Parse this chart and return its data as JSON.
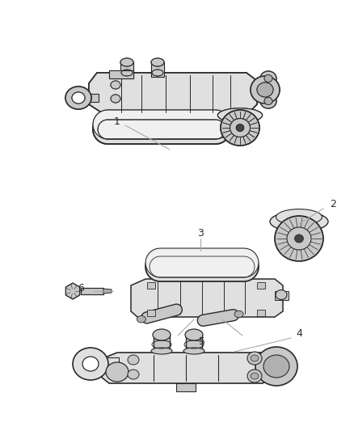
{
  "bg_color": "#ffffff",
  "line_color": "#2a2a2a",
  "label_color": "#2a2a2a",
  "leader_color": "#aaaaaa",
  "figsize": [
    4.38,
    5.33
  ],
  "dpi": 100,
  "fill_light": "#f0f0f0",
  "fill_mid": "#e0e0e0",
  "fill_dark": "#c8c8c8",
  "fill_darker": "#b0b0b0"
}
